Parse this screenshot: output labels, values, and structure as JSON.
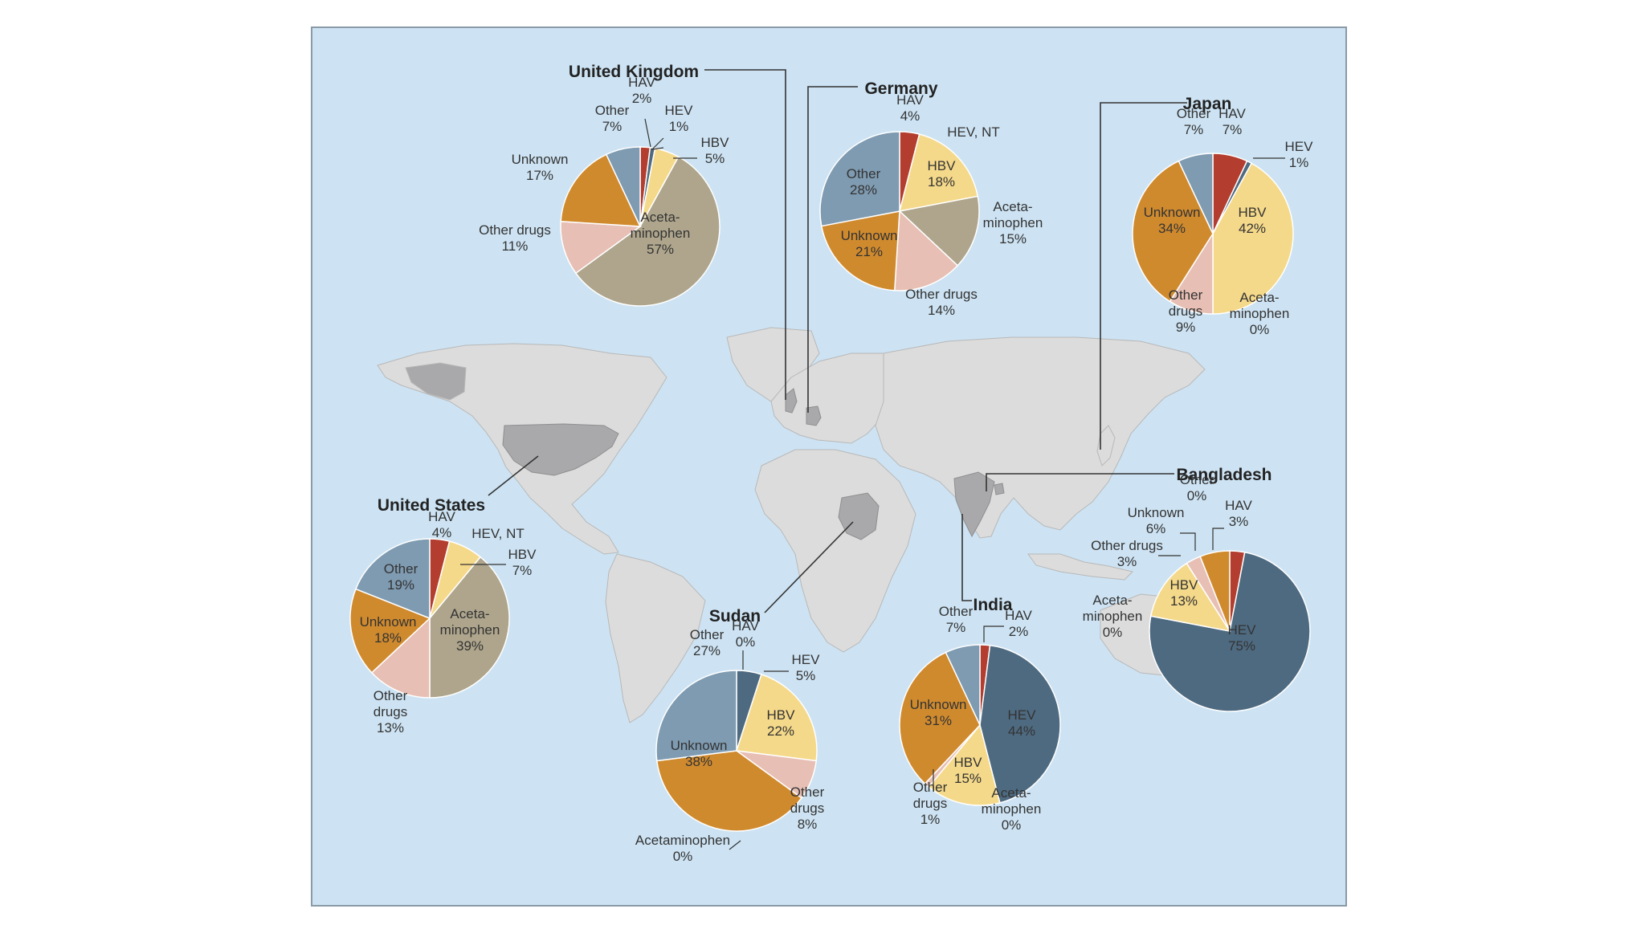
{
  "colors": {
    "HAV": "#b33d2e",
    "HEV": "#4e6a80",
    "HBV": "#f5d98a",
    "Acetaminophen": "#aea58c",
    "Other drugs": "#e7bfb4",
    "Unknown": "#d08a2e",
    "Other": "#7f9bb1",
    "ocean": "#cde3f3",
    "land": "#dcdcdc",
    "highlight": "#a9a9ab",
    "frame": "#8a9aa6"
  },
  "chart_data": [
    {
      "type": "pie",
      "country": "United Kingdom",
      "slices": [
        {
          "category": "HAV",
          "value": 2,
          "label": [
            "HAV",
            "2%"
          ]
        },
        {
          "category": "HEV",
          "value": 1,
          "label": [
            "HEV",
            "1%"
          ]
        },
        {
          "category": "HBV",
          "value": 5,
          "label": [
            "HBV",
            "5%"
          ]
        },
        {
          "category": "Acetaminophen",
          "value": 57,
          "label": [
            "Aceta-",
            "minophen",
            "57%"
          ]
        },
        {
          "category": "Other drugs",
          "value": 11,
          "label": [
            "Other drugs",
            "11%"
          ]
        },
        {
          "category": "Unknown",
          "value": 17,
          "label": [
            "Unknown",
            "17%"
          ]
        },
        {
          "category": "Other",
          "value": 7,
          "label": [
            "Other",
            "7%"
          ]
        }
      ]
    },
    {
      "type": "pie",
      "country": "Germany",
      "slices": [
        {
          "category": "HAV",
          "value": 4,
          "label": [
            "HAV",
            "4%"
          ]
        },
        {
          "category": "HEV",
          "value": 0,
          "label": [
            "HEV, NT"
          ]
        },
        {
          "category": "HBV",
          "value": 18,
          "label": [
            "HBV",
            "18%"
          ]
        },
        {
          "category": "Acetaminophen",
          "value": 15,
          "label": [
            "Aceta-",
            "minophen",
            "15%"
          ]
        },
        {
          "category": "Other drugs",
          "value": 14,
          "label": [
            "Other drugs",
            "14%"
          ]
        },
        {
          "category": "Unknown",
          "value": 21,
          "label": [
            "Unknown",
            "21%"
          ]
        },
        {
          "category": "Other",
          "value": 28,
          "label": [
            "Other",
            "28%"
          ]
        }
      ]
    },
    {
      "type": "pie",
      "country": "Japan",
      "slices": [
        {
          "category": "HAV",
          "value": 7,
          "label": [
            "HAV",
            "7%"
          ]
        },
        {
          "category": "HEV",
          "value": 1,
          "label": [
            "HEV",
            "1%"
          ]
        },
        {
          "category": "HBV",
          "value": 42,
          "label": [
            "HBV",
            "42%"
          ]
        },
        {
          "category": "Acetaminophen",
          "value": 0,
          "label": [
            "Aceta-",
            "minophen",
            "0%"
          ]
        },
        {
          "category": "Other drugs",
          "value": 9,
          "label": [
            "Other",
            "drugs",
            "9%"
          ]
        },
        {
          "category": "Unknown",
          "value": 34,
          "label": [
            "Unknown",
            "34%"
          ]
        },
        {
          "category": "Other",
          "value": 7,
          "label": [
            "Other",
            "7%"
          ]
        }
      ]
    },
    {
      "type": "pie",
      "country": "United States",
      "slices": [
        {
          "category": "HAV",
          "value": 4,
          "label": [
            "HAV",
            "4%"
          ]
        },
        {
          "category": "HEV",
          "value": 0,
          "label": [
            "HEV, NT"
          ]
        },
        {
          "category": "HBV",
          "value": 7,
          "label": [
            "HBV",
            "7%"
          ]
        },
        {
          "category": "Acetaminophen",
          "value": 39,
          "label": [
            "Aceta-",
            "minophen",
            "39%"
          ]
        },
        {
          "category": "Other drugs",
          "value": 13,
          "label": [
            "Other",
            "drugs",
            "13%"
          ]
        },
        {
          "category": "Unknown",
          "value": 18,
          "label": [
            "Unknown",
            "18%"
          ]
        },
        {
          "category": "Other",
          "value": 19,
          "label": [
            "Other",
            "19%"
          ]
        }
      ]
    },
    {
      "type": "pie",
      "country": "Sudan",
      "slices": [
        {
          "category": "HAV",
          "value": 0,
          "label": [
            "HAV",
            "0%"
          ]
        },
        {
          "category": "HEV",
          "value": 5,
          "label": [
            "HEV",
            "5%"
          ]
        },
        {
          "category": "HBV",
          "value": 22,
          "label": [
            "HBV",
            "22%"
          ]
        },
        {
          "category": "Other drugs",
          "value": 8,
          "label": [
            "Other",
            "drugs",
            "8%"
          ]
        },
        {
          "category": "Acetaminophen",
          "value": 0,
          "label": [
            "Acetaminophen",
            "0%"
          ]
        },
        {
          "category": "Unknown",
          "value": 38,
          "label": [
            "Unknown",
            "38%"
          ]
        },
        {
          "category": "Other",
          "value": 27,
          "label": [
            "Other",
            "27%"
          ]
        }
      ]
    },
    {
      "type": "pie",
      "country": "India",
      "slices": [
        {
          "category": "HAV",
          "value": 2,
          "label": [
            "HAV",
            "2%"
          ]
        },
        {
          "category": "HEV",
          "value": 44,
          "label": [
            "HEV",
            "44%"
          ]
        },
        {
          "category": "Acetaminophen",
          "value": 0,
          "label": [
            "Aceta-",
            "minophen",
            "0%"
          ]
        },
        {
          "category": "HBV",
          "value": 15,
          "label": [
            "HBV",
            "15%"
          ]
        },
        {
          "category": "Other drugs",
          "value": 1,
          "label": [
            "Other",
            "drugs",
            "1%"
          ]
        },
        {
          "category": "Unknown",
          "value": 31,
          "label": [
            "Unknown",
            "31%"
          ]
        },
        {
          "category": "Other",
          "value": 7,
          "label": [
            "Other",
            "7%"
          ]
        }
      ]
    },
    {
      "type": "pie",
      "country": "Bangladesh",
      "slices": [
        {
          "category": "HAV",
          "value": 3,
          "label": [
            "HAV",
            "3%"
          ]
        },
        {
          "category": "HEV",
          "value": 75,
          "label": [
            "HEV",
            "75%"
          ]
        },
        {
          "category": "Acetaminophen",
          "value": 0,
          "label": [
            "Aceta-",
            "minophen",
            "0%"
          ]
        },
        {
          "category": "HBV",
          "value": 13,
          "label": [
            "HBV",
            "13%"
          ]
        },
        {
          "category": "Other drugs",
          "value": 3,
          "label": [
            "Other drugs",
            "3%"
          ]
        },
        {
          "category": "Unknown",
          "value": 6,
          "label": [
            "Unknown",
            "6%"
          ]
        },
        {
          "category": "Other",
          "value": 0,
          "label": [
            "Other",
            "0%"
          ]
        }
      ]
    }
  ]
}
